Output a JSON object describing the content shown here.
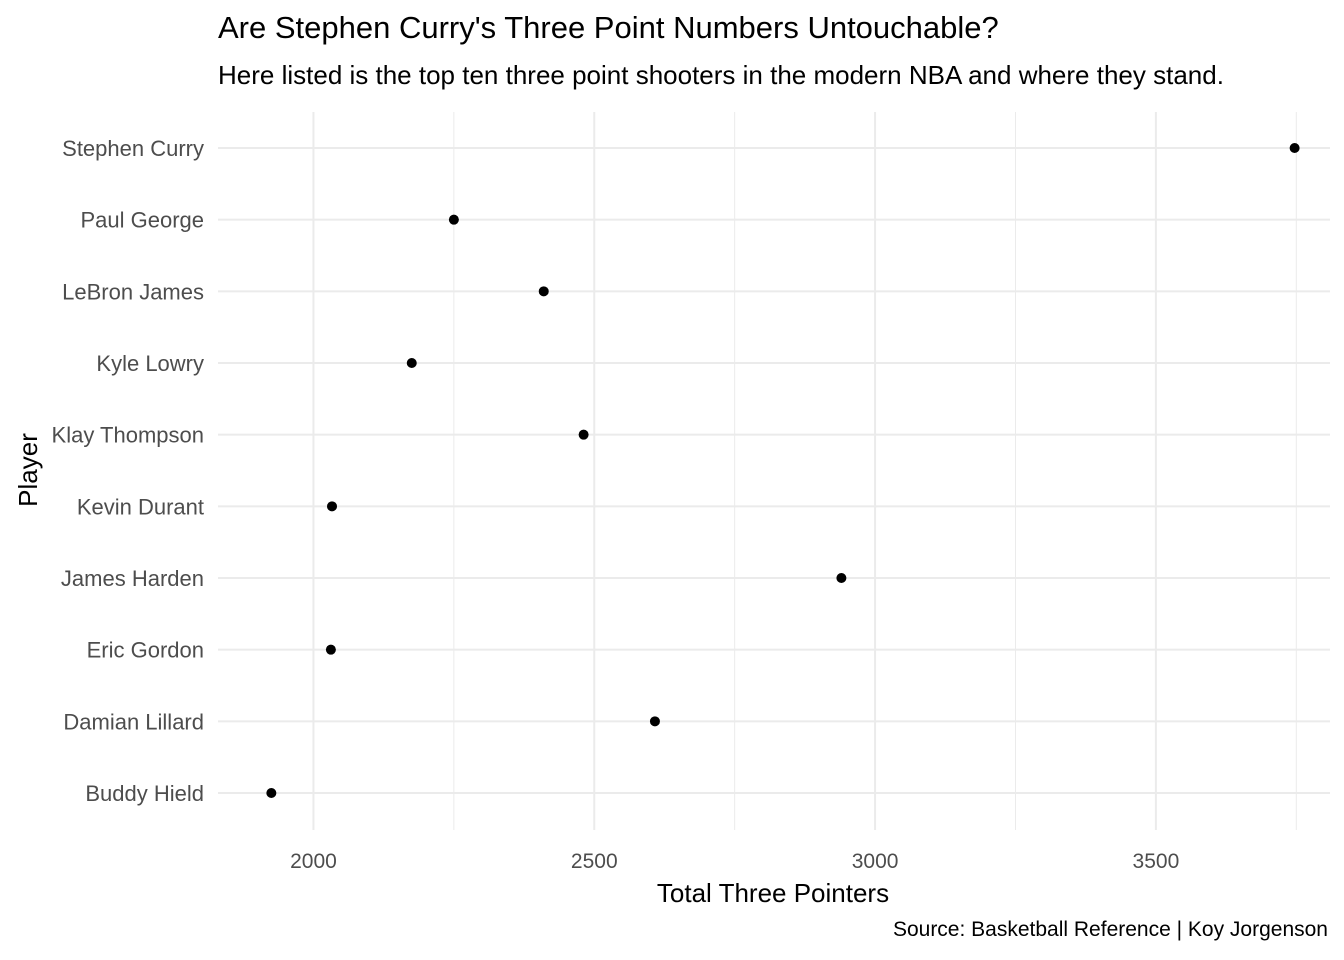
{
  "chart_data": {
    "type": "scatter",
    "title": "Are Stephen Curry's Three Point Numbers Untouchable?",
    "subtitle": "Here listed is the top ten three point shooters in the modern NBA and where they stand.",
    "caption": "Source: Basketball Reference | Koy Jorgenson",
    "xlabel": "Total Three Pointers",
    "ylabel": "Player",
    "xlim": [
      1830,
      3810
    ],
    "x_ticks": [
      2000,
      2500,
      3000,
      3500
    ],
    "x_tick_labels": [
      "2000",
      "2500",
      "3000",
      "3500"
    ],
    "grid": true,
    "legend": "none",
    "point_color": "#000000",
    "grid_color": "#ebebeb",
    "categories": [
      "Stephen Curry",
      "Paul George",
      "LeBron James",
      "Kyle Lowry",
      "Klay Thompson",
      "Kevin Durant",
      "James Harden",
      "Eric Gordon",
      "Damian Lillard",
      "Buddy Hield"
    ],
    "values": [
      3747,
      2250,
      2410,
      2175,
      2481,
      2033,
      2940,
      2031,
      2608,
      1925
    ]
  }
}
